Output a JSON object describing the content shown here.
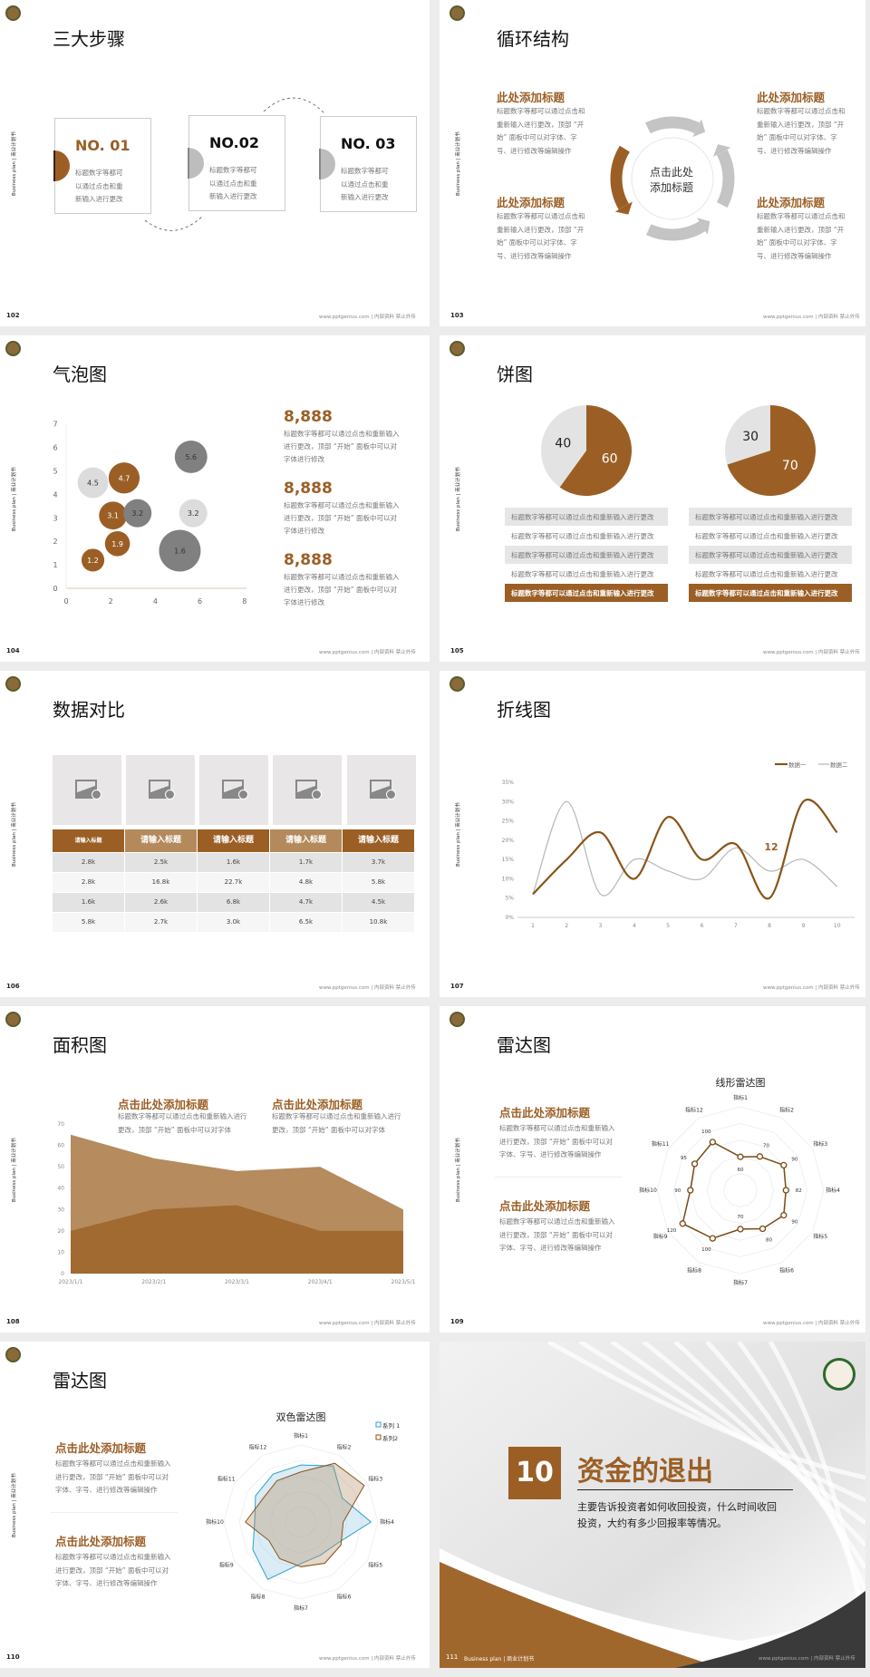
{
  "colors": {
    "brand": "#9b5f26",
    "brand_light": "#b48a5c",
    "grey": "#808080",
    "light_grey": "#dcdcdc",
    "series1_blue": "#2fa0c8"
  },
  "common": {
    "side_text": "Business plan | 商业计划书",
    "footer": "www.pptgenius.com | 内部资料 禁止外传"
  },
  "slides": [
    {
      "page": "102",
      "title": "三大步骤",
      "steps": [
        {
          "label": "NO. 01",
          "lines": [
            "标题数字等都可",
            "以通过点击和重",
            "新输入进行更改"
          ],
          "active": true
        },
        {
          "label": "NO.02",
          "lines": [
            "标题数字等都可",
            "以通过点击和重",
            "新输入进行更改"
          ],
          "active": false
        },
        {
          "label": "NO. 03",
          "lines": [
            "标题数字等都可",
            "以通过点击和重",
            "新输入进行更改"
          ],
          "active": false
        }
      ]
    },
    {
      "page": "103",
      "title": "循环结构",
      "center": [
        "点击此处",
        "添加标题"
      ],
      "blocks": [
        {
          "heading": "此处添加标题",
          "lines": [
            "标题数字等都可以通过点击和",
            "重新输入进行更改，顶部 “开",
            "始” 面板中可以对字体、字",
            "号、进行修改等编辑操作"
          ]
        },
        {
          "heading": "此处添加标题",
          "lines": [
            "标题数字等都可以通过点击和",
            "重新输入进行更改，顶部 “开",
            "始” 面板中可以对字体、字",
            "号、进行修改等编辑操作"
          ]
        },
        {
          "heading": "此处添加标题",
          "lines": [
            "标题数字等都可以通过点击和",
            "重新输入进行更改，顶部 “开",
            "始” 面板中可以对字体、字",
            "号、进行修改等编辑操作"
          ]
        },
        {
          "heading": "此处添加标题",
          "lines": [
            "标题数字等都可以通过点击和",
            "重新输入进行更改，顶部 “开",
            "始” 面板中可以对字体、字",
            "号、进行修改等编辑操作"
          ]
        }
      ]
    },
    {
      "page": "104",
      "title": "气泡图",
      "stats": [
        {
          "value": "8,888",
          "lines": [
            "标题数字等都可以通过点击和重新输入",
            "进行更改，顶部 “开始” 面板中可以对",
            "字体进行修改"
          ]
        },
        {
          "value": "8,888",
          "lines": [
            "标题数字等都可以通过点击和重新输入",
            "进行更改，顶部 “开始” 面板中可以对",
            "字体进行修改"
          ]
        },
        {
          "value": "8,888",
          "lines": [
            "标题数字等都可以通过点击和重新输入",
            "进行更改，顶部 “开始” 面板中可以对",
            "字体进行修改"
          ]
        }
      ]
    },
    {
      "page": "105",
      "title": "饼图",
      "tables": [
        [
          "标题数字等都可以通过点击和重新输入进行更改",
          "标题数字等都可以通过点击和重新输入进行更改",
          "标题数字等都可以通过点击和重新输入进行更改",
          "标题数字等都可以通过点击和重新输入进行更改",
          "标题数字等都可以通过点击和重新输入进行更改"
        ],
        [
          "标题数字等都可以通过点击和重新输入进行更改",
          "标题数字等都可以通过点击和重新输入进行更改",
          "标题数字等都可以通过点击和重新输入进行更改",
          "标题数字等都可以通过点击和重新输入进行更改",
          "标题数字等都可以通过点击和重新输入进行更改"
        ]
      ]
    },
    {
      "page": "106",
      "title": "数据对比",
      "table": {
        "headers": [
          "请输入标题",
          "请输入标题",
          "请输入标题",
          "请输入标题",
          "请输入标题"
        ],
        "rows": [
          [
            "2.8k",
            "2.5k",
            "1.6k",
            "1.7k",
            "3.7k"
          ],
          [
            "2.8k",
            "16.8k",
            "22.7k",
            "4.8k",
            "5.8k"
          ],
          [
            "1.6k",
            "2.6k",
            "6.8k",
            "4.7k",
            "4.5k"
          ],
          [
            "5.8k",
            "2.7k",
            "3.0k",
            "6.5k",
            "10.8k"
          ]
        ],
        "image_icon": "image-add-icon"
      }
    },
    {
      "page": "107",
      "title": "折线图"
    },
    {
      "page": "108",
      "title": "面积图",
      "blocks": [
        {
          "heading": "点击此处添加标题",
          "lines": [
            "标题数字等都可以通过点击和重新输入进行",
            "更改，顶部 “开始” 面板中可以对字体"
          ]
        },
        {
          "heading": "点击此处添加标题",
          "lines": [
            "标题数字等都可以通过点击和重新输入进行",
            "更改，顶部 “开始” 面板中可以对字体"
          ]
        }
      ]
    },
    {
      "page": "109",
      "title": "雷达图",
      "blocks": [
        {
          "heading": "点击此处添加标题",
          "lines": [
            "标题数字等都可以通过点击和重新输入",
            "进行更改，顶部 “开始” 面板中可以对",
            "字体、字号、进行修改等编辑操作"
          ]
        },
        {
          "heading": "点击此处添加标题",
          "lines": [
            "标题数字等都可以通过点击和重新输入",
            "进行更改，顶部 “开始” 面板中可以对",
            "字体、字号、进行修改等编辑操作"
          ]
        }
      ]
    },
    {
      "page": "110",
      "title": "雷达图",
      "blocks": [
        {
          "heading": "点击此处添加标题",
          "lines": [
            "标题数字等都可以通过点击和重新输入",
            "进行更改，顶部 “开始” 面板中可以对",
            "字体、字号、进行修改等编辑操作"
          ]
        },
        {
          "heading": "点击此处添加标题",
          "lines": [
            "标题数字等都可以通过点击和重新输入",
            "进行更改，顶部 “开始” 面板中可以对",
            "字体、字号、进行修改等编辑操作"
          ]
        }
      ]
    },
    {
      "page": "111",
      "number": "10",
      "title": "资金的退出",
      "lines": [
        "主要告诉投资者如何收回投资，什么时间收回",
        "投资，大约有多少回报率等情况。"
      ],
      "footer_left": "Business plan | 商业计划书"
    }
  ],
  "chart_data": [
    {
      "type": "scatter",
      "variant": "bubble",
      "xlim": [
        0,
        8
      ],
      "ylim": [
        0,
        7
      ],
      "xticks": [
        "0",
        "2",
        "4",
        "6",
        "8"
      ],
      "yticks": [
        "0",
        "1",
        "2",
        "3",
        "4",
        "5",
        "6",
        "7"
      ],
      "points": [
        {
          "x": 1.2,
          "y": 1.2,
          "size": 1.2,
          "label": "1.2",
          "color": "brand"
        },
        {
          "x": 2.3,
          "y": 1.9,
          "size": 1.9,
          "label": "1.9",
          "color": "brand"
        },
        {
          "x": 2.1,
          "y": 3.1,
          "size": 3.1,
          "label": "3.1",
          "color": "brand"
        },
        {
          "x": 3.2,
          "y": 3.2,
          "size": 3.2,
          "label": "3.2",
          "color": "grey"
        },
        {
          "x": 1.2,
          "y": 4.5,
          "size": 4.5,
          "label": "4.5",
          "color": "light_grey"
        },
        {
          "x": 2.6,
          "y": 4.7,
          "size": 4.7,
          "label": "4.7",
          "color": "brand"
        },
        {
          "x": 5.6,
          "y": 5.6,
          "size": 5.6,
          "label": "5.6",
          "color": "grey"
        },
        {
          "x": 5.7,
          "y": 3.2,
          "size": 3.2,
          "label": "3.2",
          "color": "light_grey"
        },
        {
          "x": 5.1,
          "y": 1.6,
          "size": 1.6,
          "label": "1.6",
          "color": "grey"
        }
      ]
    },
    {
      "type": "pie",
      "slices": [
        {
          "label": "60",
          "value": 60,
          "color": "brand"
        },
        {
          "label": "40",
          "value": 40,
          "color": "light"
        }
      ]
    },
    {
      "type": "pie",
      "slices": [
        {
          "label": "70",
          "value": 70,
          "color": "brand"
        },
        {
          "label": "30",
          "value": 30,
          "color": "light"
        }
      ]
    },
    {
      "type": "line",
      "smooth": true,
      "categories": [
        "1",
        "2",
        "3",
        "4",
        "5",
        "6",
        "7",
        "8",
        "9",
        "10"
      ],
      "ylim": [
        0,
        35
      ],
      "yticks": [
        "0%",
        "5%",
        "10%",
        "15%",
        "20%",
        "25%",
        "30%",
        "35%"
      ],
      "legend": "top-right",
      "series": [
        {
          "name": "数据一",
          "values": [
            6,
            15,
            22,
            10,
            26,
            15,
            19,
            5,
            30,
            22
          ]
        },
        {
          "name": "数据二",
          "values": [
            6,
            30,
            6,
            15,
            12,
            10,
            18,
            12,
            15,
            8
          ]
        }
      ],
      "annotation": "12"
    },
    {
      "type": "area",
      "categories": [
        "2023/1/1",
        "2023/2/1",
        "2023/3/1",
        "2023/4/1",
        "2023/5/1"
      ],
      "ylim": [
        0,
        70
      ],
      "yticks": [
        "0",
        "10",
        "20",
        "30",
        "40",
        "50",
        "60",
        "70"
      ],
      "series": [
        {
          "values": [
            65,
            54,
            48,
            50,
            30
          ]
        },
        {
          "values": [
            20,
            30,
            32,
            20,
            20
          ]
        }
      ]
    },
    {
      "type": "radar",
      "title": "线形雷达图",
      "axes": [
        "指标1",
        "指标2",
        "指标3",
        "指标4",
        "指标5",
        "指标6",
        "指标7",
        "指标8",
        "指标9",
        "指标10",
        "指标11",
        "指标12"
      ],
      "values": [
        60,
        70,
        90,
        82,
        90,
        80,
        70,
        100,
        120,
        90,
        95,
        100
      ],
      "value_labels": [
        "60",
        "70",
        "90",
        "82",
        "90",
        "80",
        "70",
        "100",
        "120",
        "90",
        "95",
        "100"
      ],
      "rmax": 150
    },
    {
      "type": "radar",
      "title": "双色雷达图",
      "axes": [
        "指标1",
        "指标2",
        "指标3",
        "指标4",
        "指标5",
        "指标6",
        "指标7",
        "指标8",
        "指标9",
        "指标10",
        "指标11",
        "指标12"
      ],
      "rmax": 100,
      "legend": "top-right",
      "series": [
        {
          "name": "系列 1",
          "values": [
            74,
            84,
            62,
            91,
            55,
            50,
            54,
            86,
            72,
            60,
            68,
            72
          ]
        },
        {
          "name": "系列2",
          "values": [
            65,
            88,
            95,
            55,
            60,
            62,
            58,
            55,
            48,
            72,
            58,
            62
          ]
        }
      ]
    }
  ]
}
